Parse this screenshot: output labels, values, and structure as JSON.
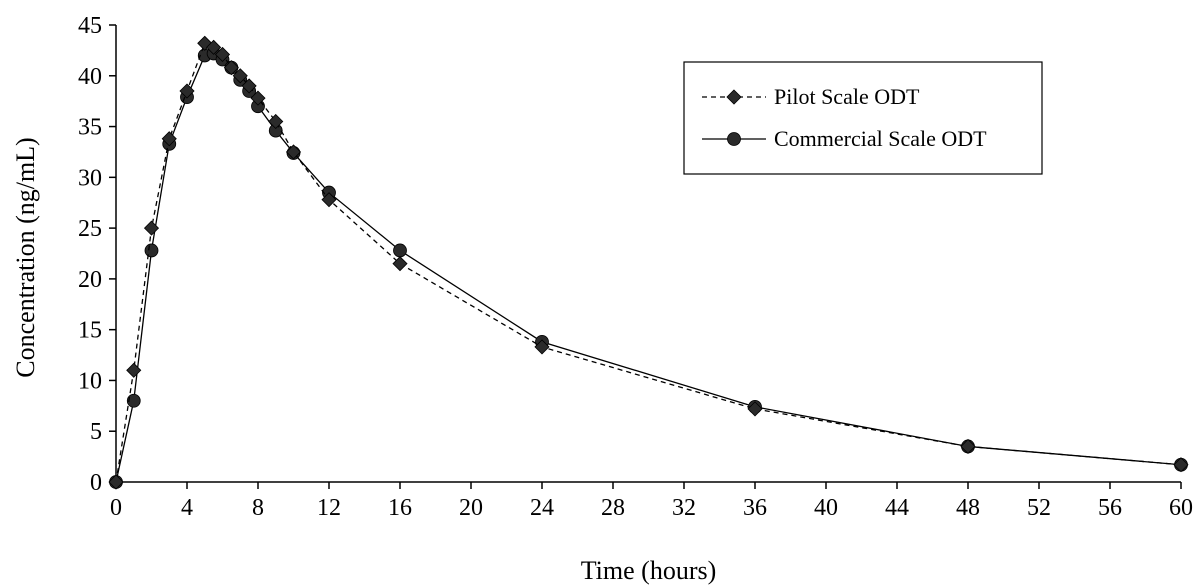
{
  "chart_data": {
    "type": "line",
    "title": "",
    "xlabel": "Time (hours)",
    "ylabel": "Concentration (ng/mL)",
    "xlim": [
      0,
      60
    ],
    "ylim": [
      0,
      45
    ],
    "xticks": [
      0,
      4,
      8,
      12,
      16,
      20,
      24,
      28,
      32,
      36,
      40,
      44,
      48,
      52,
      56,
      60
    ],
    "yticks": [
      0,
      5,
      10,
      15,
      20,
      25,
      30,
      35,
      40,
      45
    ],
    "grid": false,
    "legend_position": "top-right",
    "series": [
      {
        "name": "Pilot Scale ODT",
        "marker": "diamond",
        "line_style": "dashed",
        "color": "#000000",
        "x": [
          0,
          1,
          2,
          3,
          4,
          5,
          5.5,
          6,
          6.5,
          7,
          7.5,
          8,
          9,
          10,
          12,
          16,
          24,
          36,
          48,
          60
        ],
        "y": [
          0,
          11.0,
          25.0,
          33.8,
          38.5,
          43.2,
          42.8,
          42.1,
          40.8,
          40.0,
          39.0,
          37.8,
          35.5,
          32.5,
          27.8,
          21.5,
          13.3,
          7.2,
          3.5,
          1.7
        ]
      },
      {
        "name": "Commercial Scale ODT",
        "marker": "circle",
        "line_style": "solid",
        "color": "#000000",
        "x": [
          0,
          1,
          2,
          3,
          4,
          5,
          5.5,
          6,
          6.5,
          7,
          7.5,
          8,
          9,
          10,
          12,
          16,
          24,
          36,
          48,
          60
        ],
        "y": [
          0,
          8.0,
          22.8,
          33.3,
          37.9,
          42.0,
          42.2,
          41.6,
          40.8,
          39.6,
          38.5,
          37.0,
          34.6,
          32.4,
          28.5,
          22.8,
          13.8,
          7.4,
          3.5,
          1.7
        ]
      }
    ]
  }
}
